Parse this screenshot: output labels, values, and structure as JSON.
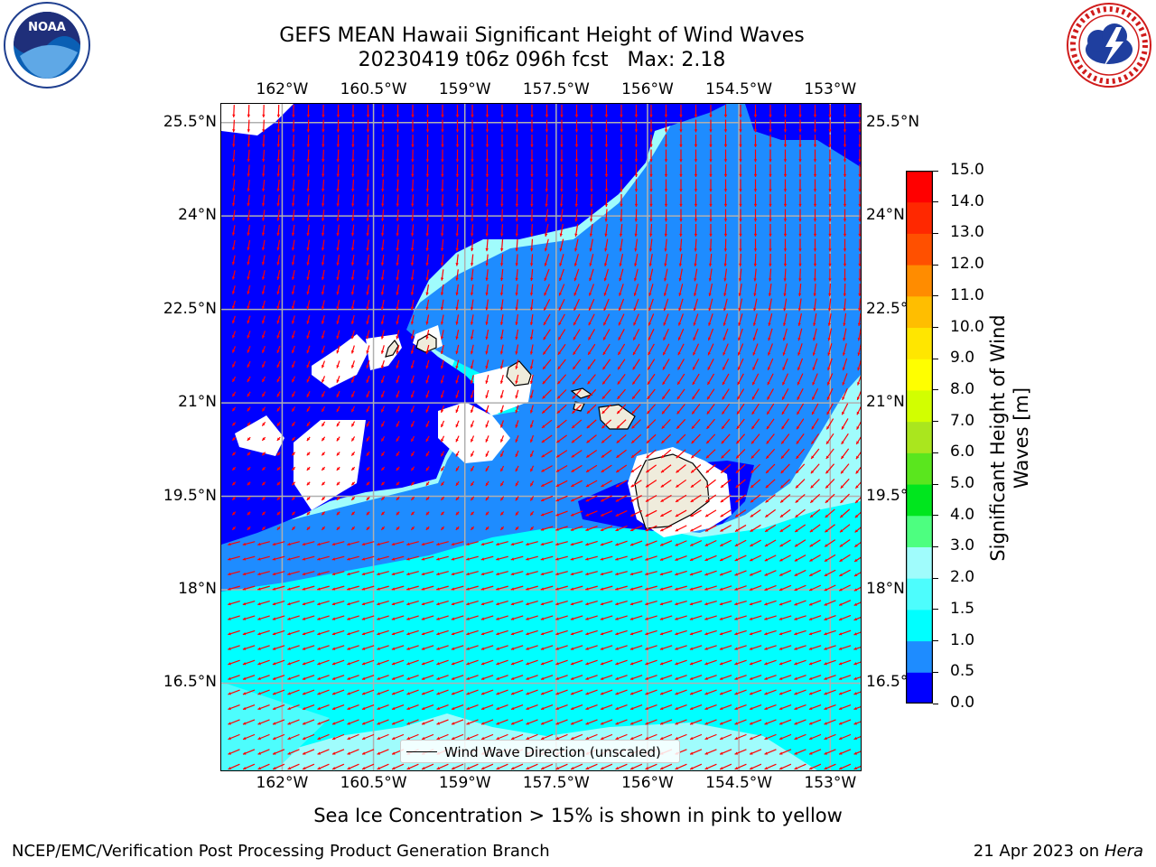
{
  "header": {
    "title_line1": "GEFS MEAN Hawaii Significant Height of Wind Waves",
    "title_line2": "20230419 t06z 096h fcst   Max: 2.18"
  },
  "logos": {
    "left": "noaa-logo",
    "right": "nws-logo"
  },
  "map": {
    "lon_ticks": [
      "162°W",
      "160.5°W",
      "159°W",
      "157.5°W",
      "156°W",
      "154.5°W",
      "153°W"
    ],
    "lat_ticks": [
      "25.5°N",
      "24°N",
      "22.5°N",
      "21°N",
      "19.5°N",
      "18°N",
      "16.5°N"
    ],
    "extent": {
      "lon": [
        -163.0,
        -152.5
      ],
      "lat": [
        15.1,
        25.8
      ]
    },
    "legend_label": "Wind Wave Direction (unscaled)",
    "arrow_color": "#ff0000",
    "grid": true
  },
  "colorbar": {
    "label": "Significant Height of Wind Waves [m]",
    "ticks": [
      "0.0",
      "0.5",
      "1.0",
      "1.5",
      "2.0",
      "3.0",
      "4.0",
      "5.0",
      "6.0",
      "7.0",
      "8.0",
      "9.0",
      "10.0",
      "11.0",
      "12.0",
      "13.0",
      "14.0",
      "15.0"
    ],
    "colors": [
      "#0000ff",
      "#1e8cff",
      "#00ffff",
      "#4dfdfd",
      "#a0fcfc",
      "#4dff80",
      "#00e61e",
      "#5ae61e",
      "#aae61e",
      "#d2ff00",
      "#ffff00",
      "#ffe600",
      "#ffbe00",
      "#ff8c00",
      "#ff5000",
      "#ff2800",
      "#ff0000"
    ]
  },
  "notes": {
    "sea_ice": "Sea Ice Concentration > 15% is shown in pink to yellow"
  },
  "footer": {
    "left": "NCEP/EMC/Verification Post Processing Product Generation Branch",
    "right_prefix": "21 Apr 2023 on ",
    "right_host": "Hera"
  }
}
